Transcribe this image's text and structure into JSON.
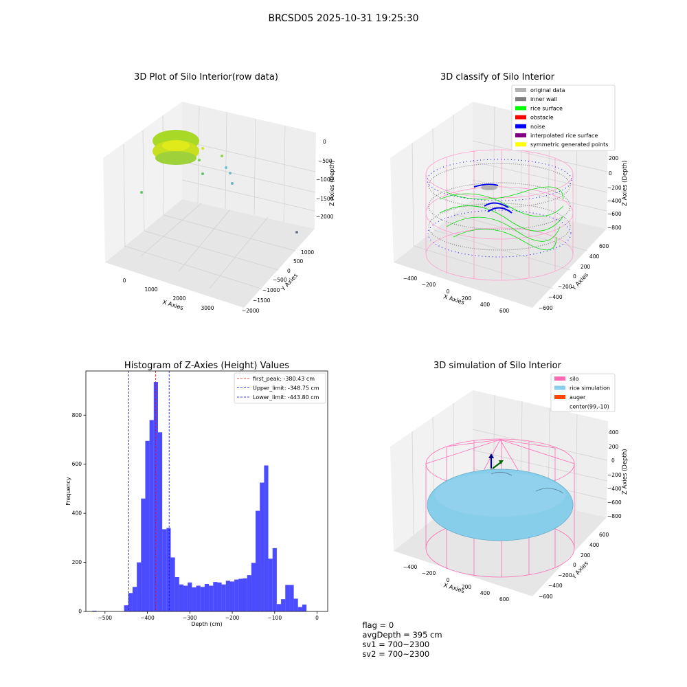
{
  "suptitle": "BRCSD05 2025-10-31 19:25:30",
  "panel1": {
    "title": "3D Plot of Silo Interior(row data)",
    "xlabel": "X Axies",
    "ylabel": "Y Axies",
    "zlabel": "Z Axies (Depth)",
    "xticks": [
      "0",
      "1000",
      "2000",
      "3000"
    ],
    "yticks": [
      "1000",
      "500",
      "0",
      "−500",
      "−1000",
      "−1500",
      "−2000"
    ],
    "zticks": [
      "0",
      "−500",
      "−1000",
      "−1500",
      "−2000"
    ]
  },
  "panel2": {
    "title": "3D classify of Silo Interior",
    "xlabel": "X Axies",
    "ylabel": "Y Axies",
    "zlabel": "Z Axies (Depth)",
    "xticks": [
      "−400",
      "−200",
      "0",
      "200",
      "400",
      "600"
    ],
    "yticks": [
      "600",
      "400",
      "200",
      "0",
      "−200",
      "−400",
      "−600"
    ],
    "zticks": [
      "200",
      "0",
      "−200",
      "−400",
      "−600",
      "−800"
    ],
    "legend": [
      {
        "label": "original data",
        "color": "#b3b3b3"
      },
      {
        "label": "inner wall",
        "color": "#808080"
      },
      {
        "label": "rice surface",
        "color": "#00ff00"
      },
      {
        "label": "obstacle",
        "color": "#ff0000"
      },
      {
        "label": "noise",
        "color": "#0000ff"
      },
      {
        "label": "interpolated rice surface",
        "color": "#800080"
      },
      {
        "label": "symmetric generated points",
        "color": "#ffff00"
      }
    ]
  },
  "panel4": {
    "title": "3D simulation of Silo Interior",
    "xlabel": "X Axies",
    "ylabel": "Y Axies",
    "zlabel": "Z Axies (Depth)",
    "xticks": [
      "−400",
      "−200",
      "0",
      "200",
      "400",
      "600"
    ],
    "yticks": [
      "600",
      "400",
      "200",
      "0",
      "−200",
      "−400",
      "−600"
    ],
    "zticks": [
      "400",
      "200",
      "0",
      "−200",
      "−400",
      "−600",
      "−800"
    ],
    "legend": [
      {
        "label": "silo",
        "color": "#ff69b4"
      },
      {
        "label": "rice simulation",
        "color": "#87ceeb"
      },
      {
        "label": "auger",
        "color": "#ff4500"
      },
      {
        "label": "center(99,-10)",
        "color": ""
      }
    ]
  },
  "footer": {
    "flag": "flag = 0",
    "avg": "avgDepth = 395 cm",
    "sv1": "sv1 = 700~2300",
    "sv2": "sv2 = 700~2300"
  },
  "chart_data": {
    "type": "bar",
    "title": "Histogram of Z-Axies (Height) Values",
    "xlabel": "Depth (cm)",
    "ylabel": "Frequency",
    "xlim": [
      -545,
      25
    ],
    "ylim": [
      0,
      980
    ],
    "xticks": [
      -500,
      -400,
      -300,
      -200,
      -100,
      0
    ],
    "yticks": [
      0,
      200,
      400,
      600,
      800
    ],
    "bar_color": "#0000ff",
    "bins": [
      {
        "x0": -530,
        "x1": -520,
        "value": 3
      },
      {
        "x0": -455,
        "x1": -445,
        "value": 25
      },
      {
        "x0": -445,
        "x1": -435,
        "value": 75
      },
      {
        "x0": -435,
        "x1": -425,
        "value": 100
      },
      {
        "x0": -425,
        "x1": -415,
        "value": 200
      },
      {
        "x0": -415,
        "x1": -405,
        "value": 460
      },
      {
        "x0": -405,
        "x1": -395,
        "value": 695
      },
      {
        "x0": -395,
        "x1": -385,
        "value": 780
      },
      {
        "x0": -385,
        "x1": -375,
        "value": 935
      },
      {
        "x0": -375,
        "x1": -365,
        "value": 730
      },
      {
        "x0": -365,
        "x1": -355,
        "value": 335
      },
      {
        "x0": -355,
        "x1": -345,
        "value": 340
      },
      {
        "x0": -345,
        "x1": -335,
        "value": 220
      },
      {
        "x0": -335,
        "x1": -325,
        "value": 140
      },
      {
        "x0": -325,
        "x1": -315,
        "value": 110
      },
      {
        "x0": -315,
        "x1": -305,
        "value": 105
      },
      {
        "x0": -305,
        "x1": -295,
        "value": 118
      },
      {
        "x0": -295,
        "x1": -285,
        "value": 98
      },
      {
        "x0": -285,
        "x1": -275,
        "value": 105
      },
      {
        "x0": -275,
        "x1": -265,
        "value": 100
      },
      {
        "x0": -265,
        "x1": -255,
        "value": 112
      },
      {
        "x0": -255,
        "x1": -245,
        "value": 105
      },
      {
        "x0": -245,
        "x1": -235,
        "value": 120
      },
      {
        "x0": -235,
        "x1": -225,
        "value": 118
      },
      {
        "x0": -225,
        "x1": -215,
        "value": 110
      },
      {
        "x0": -215,
        "x1": -205,
        "value": 125
      },
      {
        "x0": -205,
        "x1": -195,
        "value": 122
      },
      {
        "x0": -195,
        "x1": -185,
        "value": 130
      },
      {
        "x0": -185,
        "x1": -175,
        "value": 133
      },
      {
        "x0": -175,
        "x1": -165,
        "value": 135
      },
      {
        "x0": -165,
        "x1": -155,
        "value": 148
      },
      {
        "x0": -155,
        "x1": -145,
        "value": 198
      },
      {
        "x0": -145,
        "x1": -135,
        "value": 410
      },
      {
        "x0": -135,
        "x1": -125,
        "value": 525
      },
      {
        "x0": -125,
        "x1": -115,
        "value": 595
      },
      {
        "x0": -115,
        "x1": -105,
        "value": 215
      },
      {
        "x0": -105,
        "x1": -95,
        "value": 258
      },
      {
        "x0": -95,
        "x1": -85,
        "value": 30
      },
      {
        "x0": -85,
        "x1": -75,
        "value": 50
      },
      {
        "x0": -75,
        "x1": -65,
        "value": 108
      },
      {
        "x0": -65,
        "x1": -55,
        "value": 108
      },
      {
        "x0": -55,
        "x1": -45,
        "value": 52
      },
      {
        "x0": -45,
        "x1": -35,
        "value": 18
      },
      {
        "x0": -35,
        "x1": -25,
        "value": 28
      }
    ],
    "vlines": [
      {
        "label": "first_peak: -380.43 cm",
        "x": -380.43,
        "color": "#ff0000"
      },
      {
        "label": "Upper_limit: -348.75 cm",
        "x": -348.75,
        "color": "#0000ff"
      },
      {
        "label": "Lower_limit: -443.80 cm",
        "x": -443.8,
        "color": "#0000ff"
      }
    ]
  }
}
